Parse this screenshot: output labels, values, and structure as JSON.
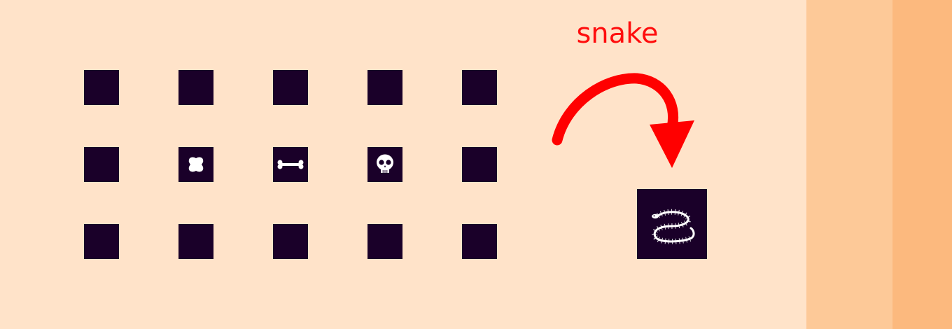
{
  "panel": {
    "background_color": "#ffe3c9",
    "side_band_colors": [
      "#fdc998",
      "#fcb97e"
    ],
    "tile_color": "#1a0029"
  },
  "inventory": {
    "rows": [
      [
        {
          "item": null
        },
        {
          "item": null
        },
        {
          "item": null
        },
        {
          "item": null
        },
        {
          "item": null
        }
      ],
      [
        {
          "item": null
        },
        {
          "item": "leather-piece-icon"
        },
        {
          "item": "bone-icon"
        },
        {
          "item": "skull-icon"
        },
        {
          "item": null
        }
      ],
      [
        {
          "item": null
        },
        {
          "item": null
        },
        {
          "item": null
        },
        {
          "item": null
        },
        {
          "item": null
        }
      ]
    ]
  },
  "craft": {
    "result_label": "snake",
    "label_color": "#ff0d0d",
    "arrow_color": "#ff0000",
    "result_icon": "snake-skeleton-icon"
  }
}
